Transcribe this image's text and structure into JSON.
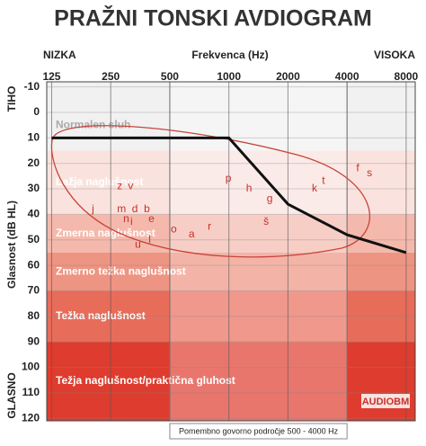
{
  "chart_data": {
    "type": "line",
    "title": "PRAŽNI TONSKI AVDIOGRAM",
    "x_label": "Frekvenca (Hz)",
    "x_low_label": "NIZKA",
    "x_high_label": "VISOKA",
    "y_label": "Glasnost (dB HL)",
    "y_top_label": "TIHO",
    "y_bottom_label": "GLASNO",
    "x_log": true,
    "xlim": [
      118,
      8900
    ],
    "xticks": [
      125,
      250,
      500,
      1000,
      2000,
      4000,
      8000
    ],
    "ylim": [
      -12,
      121
    ],
    "yticks": [
      -10,
      0,
      10,
      20,
      30,
      40,
      50,
      60,
      70,
      80,
      90,
      100,
      110,
      120
    ],
    "y_inverted": true,
    "grid": true,
    "x": [
      125,
      250,
      500,
      1000,
      2000,
      4000,
      8000
    ],
    "series": [
      {
        "color": "#111111",
        "values": [
          10,
          10,
          10,
          10,
          36,
          48,
          55
        ]
      }
    ],
    "bands": [
      {
        "name": "Normalen sluh",
        "from": -12,
        "to": 15,
        "color": "#f1f1f1"
      },
      {
        "name": "Lažja naglušnost",
        "from": 15,
        "to": 40,
        "color": "#fae3de"
      },
      {
        "name": "Zmerna naglušnost",
        "from": 40,
        "to": 55,
        "color": "#f4b9ac"
      },
      {
        "name": "Zmerno težka naglušnost",
        "from": 55,
        "to": 70,
        "color": "#ee9482"
      },
      {
        "name": "Težka naglušnost",
        "from": 70,
        "to": 90,
        "color": "#e86c5a"
      },
      {
        "name": "Težja naglušnost/praktična gluhost",
        "from": 90,
        "to": 121,
        "color": "#de3c2e"
      }
    ],
    "speech_region": {
      "from": 500,
      "to": 4000,
      "label": "Pomembno govorno področje 500 - 4000 Hz"
    },
    "speech_sounds": [
      {
        "label": "z",
        "x": 278,
        "y": 29
      },
      {
        "label": "v",
        "x": 316,
        "y": 29
      },
      {
        "label": "j",
        "x": 203,
        "y": 38
      },
      {
        "label": "m",
        "x": 284,
        "y": 38
      },
      {
        "label": "d",
        "x": 332,
        "y": 38
      },
      {
        "label": "b",
        "x": 382,
        "y": 38
      },
      {
        "label": "n",
        "x": 300,
        "y": 42
      },
      {
        "label": "i",
        "x": 319,
        "y": 43
      },
      {
        "label": "e",
        "x": 403,
        "y": 42
      },
      {
        "label": "l",
        "x": 395,
        "y": 50
      },
      {
        "label": "u",
        "x": 344,
        "y": 52
      },
      {
        "label": "o",
        "x": 524,
        "y": 46
      },
      {
        "label": "a",
        "x": 646,
        "y": 48
      },
      {
        "label": "r",
        "x": 797,
        "y": 45
      },
      {
        "label": "p",
        "x": 994,
        "y": 26
      },
      {
        "label": "h",
        "x": 1266,
        "y": 30
      },
      {
        "label": "g",
        "x": 1614,
        "y": 34
      },
      {
        "label": "š",
        "x": 1548,
        "y": 43
      },
      {
        "label": "k",
        "x": 2733,
        "y": 30
      },
      {
        "label": "t",
        "x": 3032,
        "y": 27
      },
      {
        "label": "f",
        "x": 4537,
        "y": 22
      },
      {
        "label": "s",
        "x": 5207,
        "y": 24
      }
    ],
    "logo": "AUDIOBM"
  }
}
